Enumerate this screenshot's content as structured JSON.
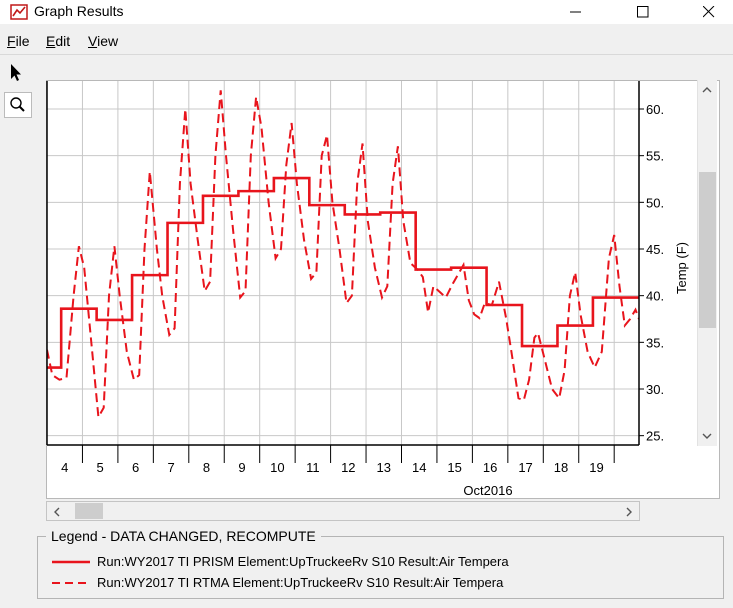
{
  "window": {
    "title": "Graph Results"
  },
  "menu": [
    "File",
    "Edit",
    "View"
  ],
  "toolbar": {
    "pointer_icon": "arrow-pointer-icon",
    "zoom_icon": "magnifier-icon"
  },
  "colors": {
    "series": "#e8141c",
    "grid": "#c8c8c8",
    "frame": "#000000"
  },
  "scrollbars": {
    "vertical": {
      "up_icon": "chevron-up-icon",
      "down_icon": "chevron-down-icon"
    },
    "horizontal": {
      "left_icon": "chevron-left-icon",
      "right_icon": "chevron-right-icon"
    }
  },
  "chart_data": {
    "type": "line",
    "ylabel": "Temp (F)",
    "xlabel": "Oct2016",
    "ylim": [
      24,
      63
    ],
    "xlim": [
      3.5,
      20.2
    ],
    "yticks": [
      25,
      30,
      35,
      40,
      45,
      50,
      55,
      60
    ],
    "ytick_labels": [
      "25.",
      "30.",
      "35.",
      "40.",
      "45.",
      "50.",
      "55.",
      "60."
    ],
    "xticks": [
      4,
      5,
      6,
      7,
      8,
      9,
      10,
      11,
      12,
      13,
      14,
      15,
      16,
      17,
      18,
      19
    ],
    "grid": true,
    "series": [
      {
        "name": "Run:WY2017  TI  PRISM Element:UpTruckeeRv  S10 Result:Air Tempera",
        "style": "solid",
        "steps": [
          [
            3.5,
            32.3
          ],
          [
            3.9,
            38.6
          ],
          [
            4.9,
            37.4
          ],
          [
            5.9,
            42.2
          ],
          [
            6.9,
            47.8
          ],
          [
            7.9,
            50.7
          ],
          [
            8.9,
            51.2
          ],
          [
            9.9,
            52.6
          ],
          [
            10.9,
            49.7
          ],
          [
            11.9,
            48.7
          ],
          [
            12.9,
            48.9
          ],
          [
            13.9,
            42.8
          ],
          [
            14.9,
            43.0
          ],
          [
            15.9,
            39.0
          ],
          [
            16.9,
            34.6
          ],
          [
            17.9,
            36.8
          ],
          [
            18.9,
            39.8
          ],
          [
            20.2,
            39.8
          ]
        ]
      },
      {
        "name": "Run:WY2017  TI  RTMA Element:UpTruckeeRv  S10 Result:Air Tempera",
        "style": "dashed",
        "points": [
          [
            3.5,
            34.2
          ],
          [
            3.65,
            31.5
          ],
          [
            3.85,
            31.0
          ],
          [
            4.05,
            31.2
          ],
          [
            4.25,
            40.0
          ],
          [
            4.4,
            45.3
          ],
          [
            4.55,
            43.0
          ],
          [
            4.75,
            35.0
          ],
          [
            4.95,
            27.0
          ],
          [
            5.1,
            28.0
          ],
          [
            5.25,
            40.0
          ],
          [
            5.4,
            45.3
          ],
          [
            5.55,
            40.0
          ],
          [
            5.75,
            34.0
          ],
          [
            5.95,
            31.0
          ],
          [
            6.1,
            31.5
          ],
          [
            6.25,
            45.0
          ],
          [
            6.4,
            53.3
          ],
          [
            6.6,
            45.0
          ],
          [
            6.75,
            40.0
          ],
          [
            6.95,
            35.8
          ],
          [
            7.1,
            36.5
          ],
          [
            7.25,
            52.0
          ],
          [
            7.4,
            60.0
          ],
          [
            7.55,
            52.0
          ],
          [
            7.75,
            46.0
          ],
          [
            7.95,
            40.5
          ],
          [
            8.1,
            41.5
          ],
          [
            8.25,
            55.0
          ],
          [
            8.4,
            62.0
          ],
          [
            8.55,
            55.0
          ],
          [
            8.75,
            47.0
          ],
          [
            8.95,
            39.8
          ],
          [
            9.1,
            40.5
          ],
          [
            9.25,
            55.0
          ],
          [
            9.4,
            61.3
          ],
          [
            9.55,
            58.0
          ],
          [
            9.75,
            50.0
          ],
          [
            9.95,
            44.0
          ],
          [
            10.1,
            45.0
          ],
          [
            10.25,
            54.0
          ],
          [
            10.4,
            58.5
          ],
          [
            10.55,
            52.0
          ],
          [
            10.75,
            46.0
          ],
          [
            10.95,
            41.8
          ],
          [
            11.1,
            42.5
          ],
          [
            11.25,
            55.0
          ],
          [
            11.4,
            57.2
          ],
          [
            11.55,
            50.0
          ],
          [
            11.75,
            45.0
          ],
          [
            11.95,
            39.2
          ],
          [
            12.1,
            40.0
          ],
          [
            12.25,
            52.0
          ],
          [
            12.4,
            56.3
          ],
          [
            12.55,
            48.0
          ],
          [
            12.75,
            43.0
          ],
          [
            12.95,
            39.8
          ],
          [
            13.1,
            41.0
          ],
          [
            13.25,
            52.0
          ],
          [
            13.4,
            56.0
          ],
          [
            13.55,
            48.0
          ],
          [
            13.75,
            43.5
          ],
          [
            13.95,
            42.8
          ],
          [
            14.1,
            42.0
          ],
          [
            14.25,
            38.2
          ],
          [
            14.4,
            41.0
          ],
          [
            14.55,
            40.5
          ],
          [
            14.75,
            39.8
          ],
          [
            14.95,
            41.3
          ],
          [
            15.1,
            42.3
          ],
          [
            15.25,
            43.3
          ],
          [
            15.4,
            39.5
          ],
          [
            15.55,
            38.0
          ],
          [
            15.7,
            37.6
          ],
          [
            15.85,
            39.2
          ],
          [
            16.05,
            39.0
          ],
          [
            16.25,
            41.5
          ],
          [
            16.45,
            37.6
          ],
          [
            16.6,
            34.0
          ],
          [
            16.8,
            29.0
          ],
          [
            16.95,
            28.8
          ],
          [
            17.1,
            31.0
          ],
          [
            17.25,
            35.5
          ],
          [
            17.35,
            36.0
          ],
          [
            17.55,
            33.0
          ],
          [
            17.75,
            30.0
          ],
          [
            17.95,
            29.0
          ],
          [
            18.1,
            32.0
          ],
          [
            18.25,
            40.0
          ],
          [
            18.4,
            42.5
          ],
          [
            18.55,
            38.0
          ],
          [
            18.75,
            34.0
          ],
          [
            18.95,
            32.3
          ],
          [
            19.15,
            34.0
          ],
          [
            19.35,
            44.0
          ],
          [
            19.5,
            46.5
          ],
          [
            19.65,
            41.0
          ],
          [
            19.8,
            36.8
          ],
          [
            19.95,
            37.5
          ],
          [
            20.1,
            38.5
          ],
          [
            20.2,
            37.5
          ]
        ]
      }
    ]
  },
  "legend": {
    "title": "Legend - DATA CHANGED, RECOMPUTE",
    "entries": [
      {
        "label": "Run:WY2017  TI  PRISM Element:UpTruckeeRv  S10 Result:Air Tempera",
        "style": "solid"
      },
      {
        "label": "Run:WY2017  TI  RTMA Element:UpTruckeeRv  S10 Result:Air Tempera",
        "style": "dashed"
      }
    ]
  }
}
